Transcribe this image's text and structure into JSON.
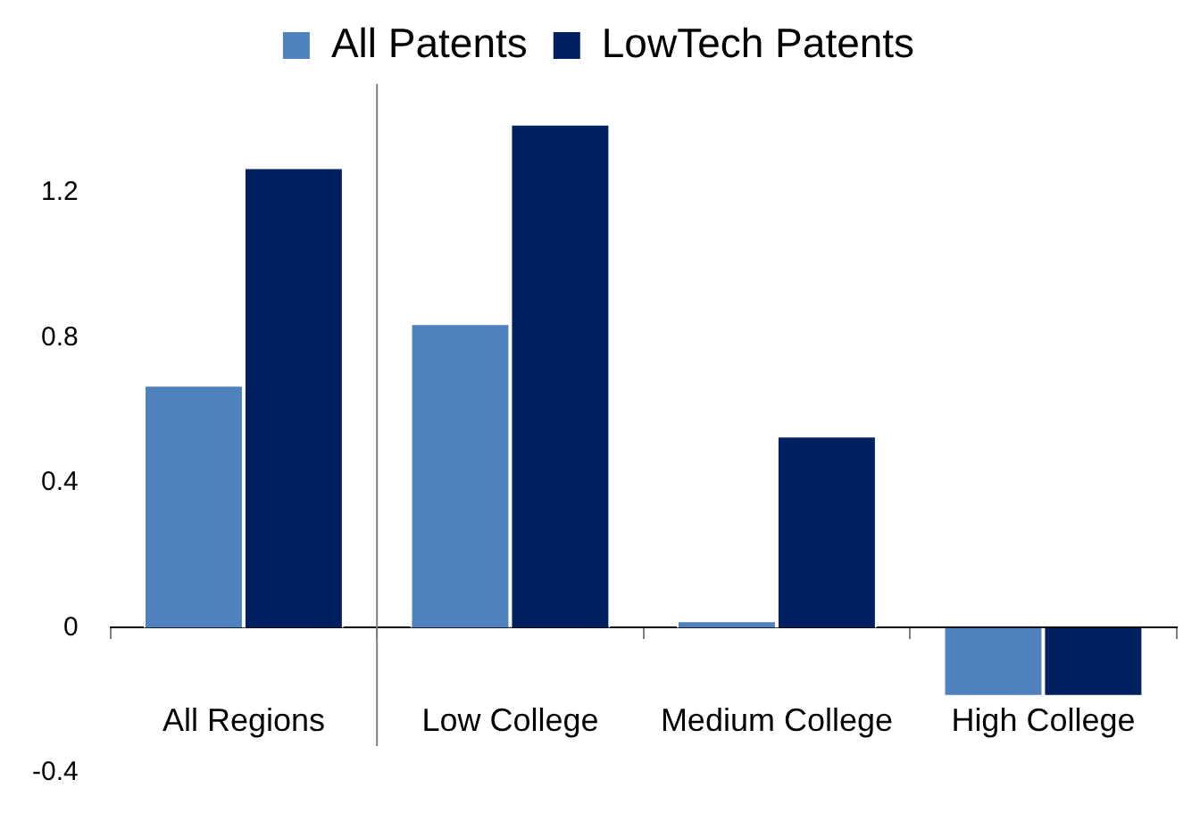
{
  "chart_data": {
    "type": "bar",
    "categories": [
      "All Regions",
      "Low College",
      "Medium College",
      "High College"
    ],
    "series": [
      {
        "name": "All Patents",
        "color": "#4f81bd",
        "values": [
          0.67,
          0.84,
          0.02,
          -0.19
        ]
      },
      {
        "name": "LowTech Patents",
        "color": "#002060",
        "values": [
          1.27,
          1.39,
          0.53,
          -0.19
        ]
      }
    ],
    "ylim": [
      -0.4,
      1.5
    ],
    "yticks": [
      -0.4,
      0,
      0.4,
      0.8,
      1.2
    ],
    "grid": false,
    "legend": "top"
  }
}
